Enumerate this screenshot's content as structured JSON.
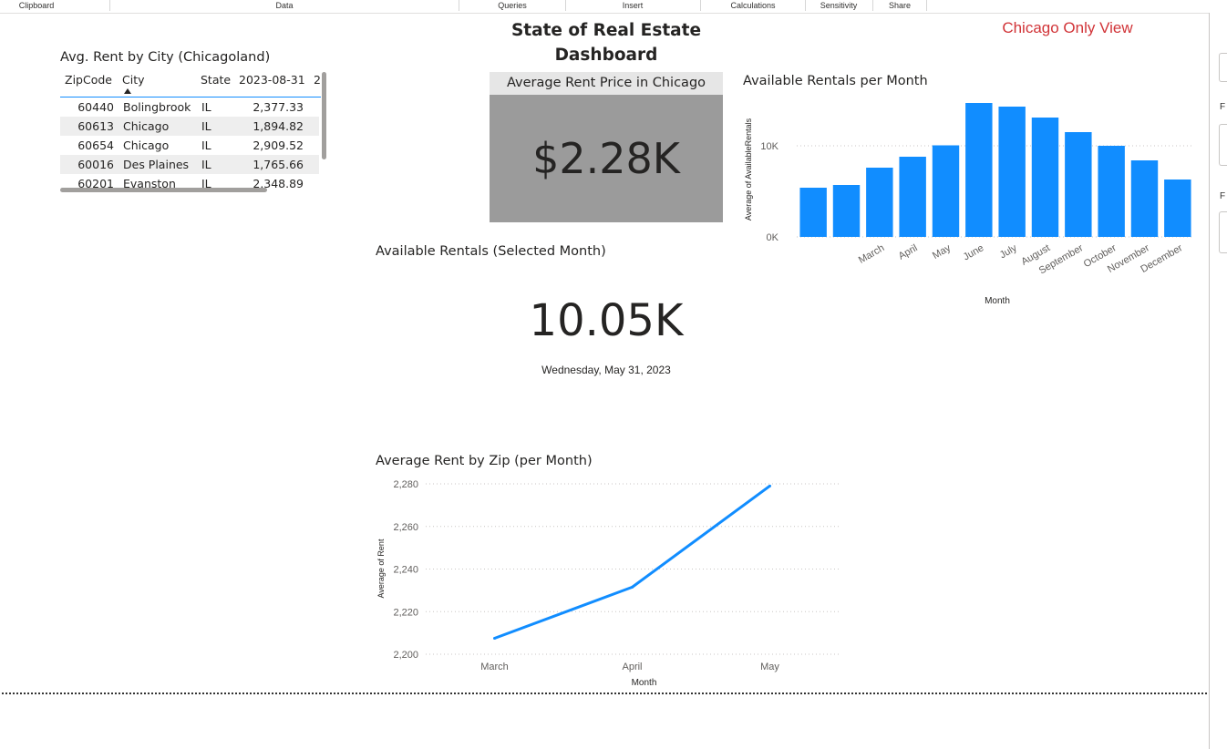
{
  "ribbon": {
    "groups": [
      {
        "label": "Clipboard"
      },
      {
        "label": "Data"
      },
      {
        "label": "Queries"
      },
      {
        "label": "Insert"
      },
      {
        "label": "Calculations"
      },
      {
        "label": "Sensitivity"
      },
      {
        "label": "Share"
      }
    ]
  },
  "right_pane": {
    "letters": [
      "F",
      "F"
    ]
  },
  "dashboard": {
    "title_line1": "State of Real Estate",
    "title_line2": "Dashboard",
    "filter_note": "Chicago Only View"
  },
  "rent_table": {
    "title": "Avg. Rent by City (Chicagoland)",
    "columns": [
      "ZipCode",
      "City",
      "State",
      "2023-08-31",
      "2"
    ],
    "rows": [
      {
        "zip": "60440",
        "city": "Bolingbrook",
        "state": "IL",
        "value": "2,377.33"
      },
      {
        "zip": "60613",
        "city": "Chicago",
        "state": "IL",
        "value": "1,894.82"
      },
      {
        "zip": "60654",
        "city": "Chicago",
        "state": "IL",
        "value": "2,909.52"
      },
      {
        "zip": "60016",
        "city": "Des Plaines",
        "state": "IL",
        "value": "1,765.66"
      },
      {
        "zip": "60201",
        "city": "Evanston",
        "state": "IL",
        "value": "2,348.89"
      }
    ]
  },
  "kpi_rent": {
    "header": "Average Rent Price in Chicago",
    "value": "$2.28K"
  },
  "kpi_rentals": {
    "title": "Available Rentals (Selected Month)",
    "value": "10.05K",
    "date": "Wednesday, May 31, 2023"
  },
  "chart_data": [
    {
      "type": "bar",
      "title": "Available Rentals per Month",
      "xlabel": "Month",
      "ylabel": "Average of AvailableRentals",
      "categories": [
        "",
        "",
        "March",
        "April",
        "May",
        "June",
        "July",
        "August",
        "September",
        "October",
        "November",
        "December"
      ],
      "values": [
        5400,
        5700,
        7600,
        8800,
        10050,
        14700,
        14300,
        13100,
        11500,
        10000,
        8400,
        6300
      ],
      "y_ticks": [
        {
          "value": 0,
          "label": "0K"
        },
        {
          "value": 10000,
          "label": "10K"
        }
      ],
      "ylim": [
        0,
        16000
      ],
      "grid": true,
      "color": "#118dff"
    },
    {
      "type": "line",
      "title": "Average Rent by Zip (per Month)",
      "xlabel": "Month",
      "ylabel": "Average of Rent",
      "categories": [
        "March",
        "April",
        "May"
      ],
      "values": [
        2207.5,
        2231.5,
        2279
      ],
      "y_ticks": [
        {
          "value": 2200,
          "label": "2,200"
        },
        {
          "value": 2220,
          "label": "2,220"
        },
        {
          "value": 2240,
          "label": "2,240"
        },
        {
          "value": 2260,
          "label": "2,260"
        },
        {
          "value": 2280,
          "label": "2,280"
        }
      ],
      "ylim": [
        2200,
        2280
      ],
      "grid": true,
      "color": "#118dff"
    }
  ]
}
